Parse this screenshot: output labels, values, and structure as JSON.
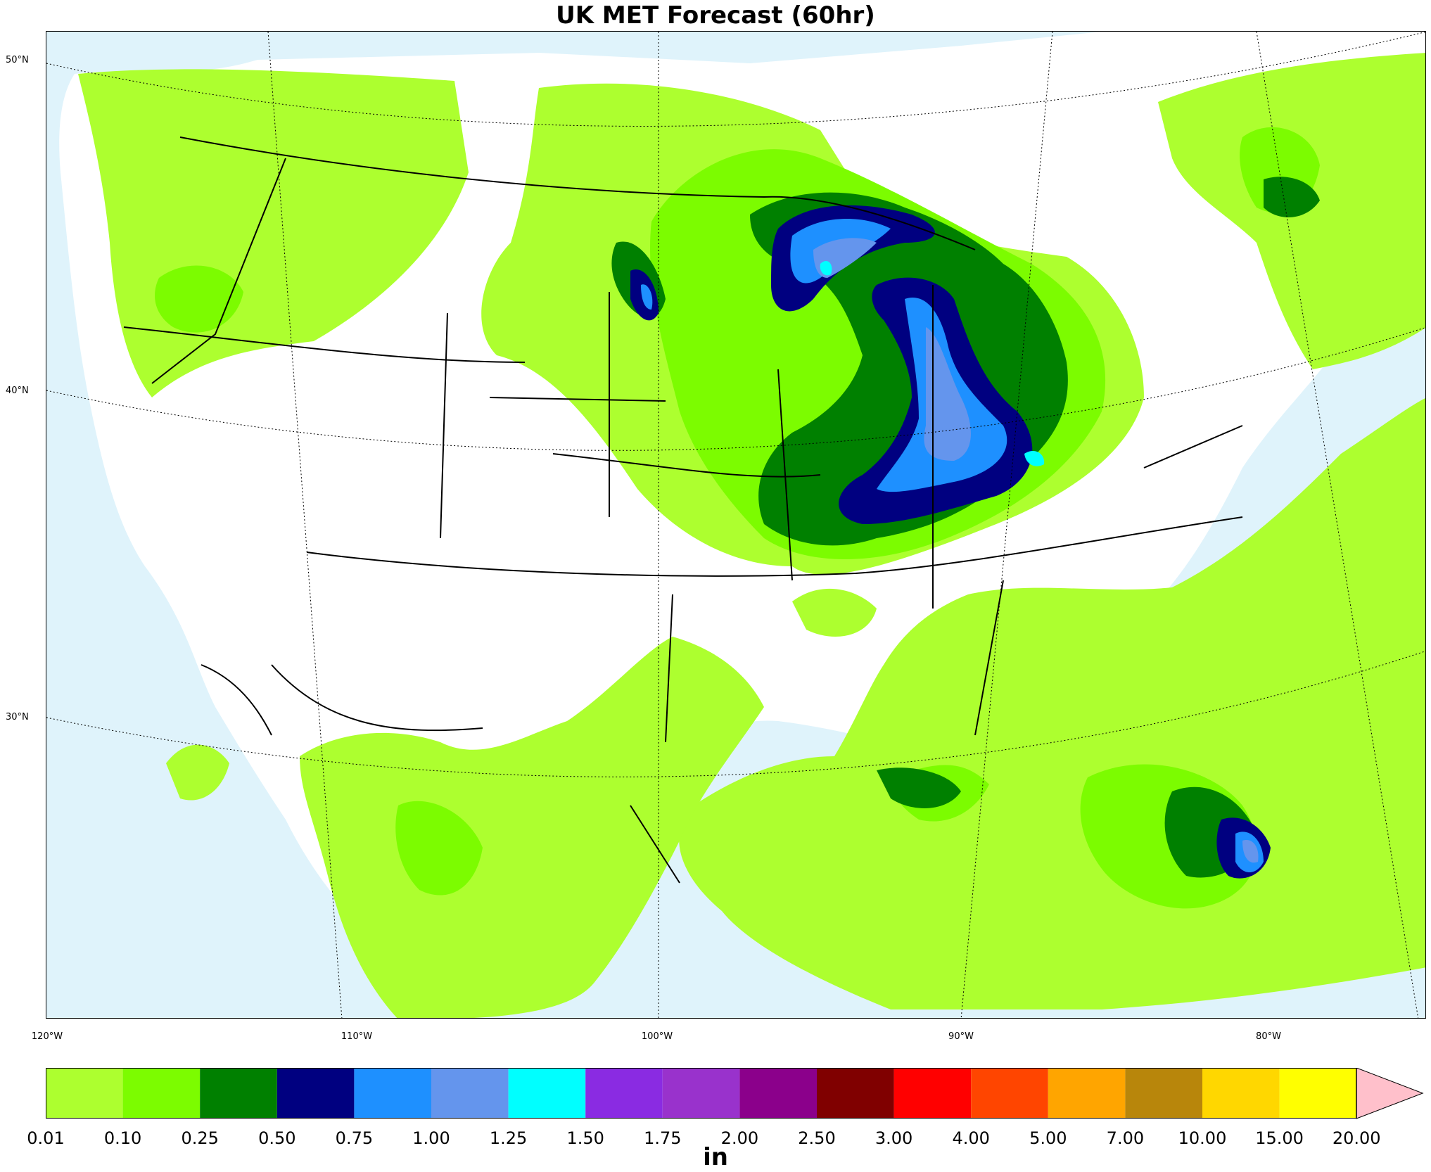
{
  "title": "UK MET Forecast (60hr)",
  "lat_labels": [
    "50°N",
    "40°N",
    "30°N"
  ],
  "lon_labels": [
    "120°W",
    "110°W",
    "100°W",
    "90°W",
    "80°W"
  ],
  "colorbar": {
    "units": "in",
    "ticks": [
      "0.01",
      "0.10",
      "0.25",
      "0.50",
      "0.75",
      "1.00",
      "1.25",
      "1.50",
      "1.75",
      "2.00",
      "2.50",
      "3.00",
      "4.00",
      "5.00",
      "7.00",
      "10.00",
      "15.00",
      "20.00"
    ],
    "colors": [
      "#adff2f",
      "#7cfc00",
      "#008000",
      "#000080",
      "#1e90ff",
      "#6495ed",
      "#00ffff",
      "#8a2be2",
      "#9932cc",
      "#8b008b",
      "#800000",
      "#ff0000",
      "#ff4500",
      "#ffa500",
      "#b8860b",
      "#ffd700",
      "#ffff00"
    ],
    "extend_color": "#ffc0cb"
  },
  "colors": {
    "ocean": "#dff3fb",
    "land": "#ffffff"
  }
}
